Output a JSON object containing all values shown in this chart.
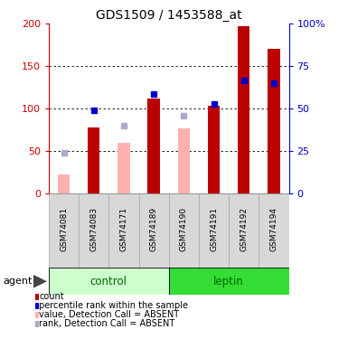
{
  "title": "GDS1509 / 1453588_at",
  "samples": [
    "GSM74081",
    "GSM74083",
    "GSM74171",
    "GSM74189",
    "GSM74190",
    "GSM74191",
    "GSM74192",
    "GSM74194"
  ],
  "red_bars": [
    null,
    78,
    null,
    112,
    null,
    103,
    197,
    170
  ],
  "pink_bars": [
    22,
    null,
    60,
    null,
    77,
    null,
    null,
    null
  ],
  "blue_squares_left": [
    null,
    98,
    null,
    117,
    null,
    105,
    133,
    130
  ],
  "lavender_squares_left": [
    48,
    null,
    80,
    null,
    92,
    null,
    null,
    null
  ],
  "ylim": [
    0,
    200
  ],
  "y2lim": [
    0,
    100
  ],
  "yticks": [
    0,
    50,
    100,
    150,
    200
  ],
  "y2ticks": [
    0,
    25,
    50,
    75,
    100
  ],
  "y2ticklabels": [
    "0",
    "25",
    "50",
    "75",
    "100%"
  ],
  "bar_width": 0.4,
  "red_color": "#BB0000",
  "pink_color": "#FFB0B0",
  "blue_color": "#0000CC",
  "lavender_color": "#AAAACC",
  "control_color_light": "#CCFFCC",
  "control_color_dark": "#44EE44",
  "leptin_color": "#33DD33",
  "axis_left_color": "#CC0000",
  "axis_right_color": "#0000CC",
  "legend_items": [
    {
      "label": "count",
      "color": "#BB0000"
    },
    {
      "label": "percentile rank within the sample",
      "color": "#0000CC"
    },
    {
      "label": "value, Detection Call = ABSENT",
      "color": "#FFB0B0"
    },
    {
      "label": "rank, Detection Call = ABSENT",
      "color": "#AAAACC"
    }
  ]
}
